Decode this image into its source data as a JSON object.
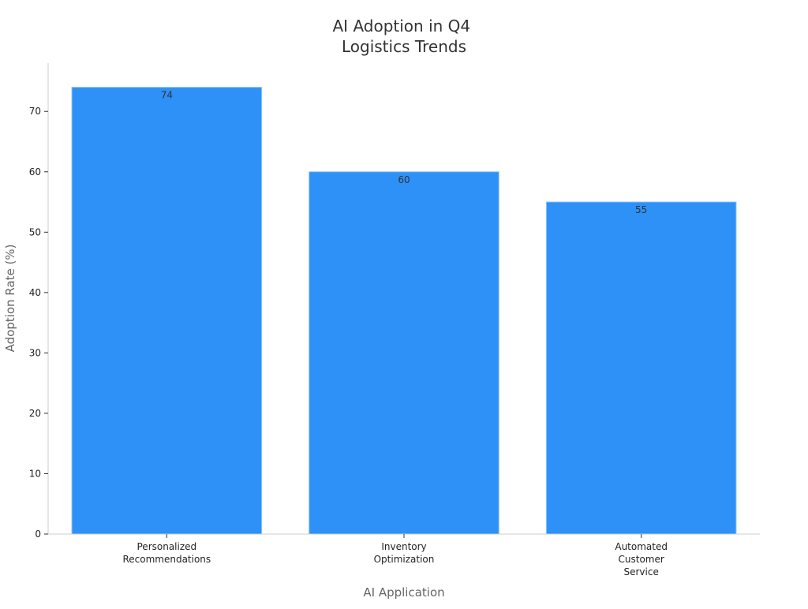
{
  "chart_data": {
    "type": "bar",
    "title": [
      "AI Adoption in Q4",
      "Logistics Trends"
    ],
    "xlabel": "AI Application",
    "ylabel": "Adoption Rate (%)",
    "categories": [
      [
        "Personalized",
        "Recommendations"
      ],
      [
        "Inventory",
        "Optimization"
      ],
      [
        "Automated",
        "Customer",
        "Service"
      ]
    ],
    "values": [
      74,
      60,
      55
    ],
    "data_labels": [
      "74",
      "60",
      "55"
    ],
    "ylim": [
      0,
      78
    ],
    "yticks": [
      0,
      10,
      20,
      30,
      40,
      50,
      60,
      70
    ],
    "grid": false,
    "legend": "none",
    "colors": {
      "bar": "#2d91f7",
      "bar_edge": "#8fc3fa",
      "axis": "#cccccc",
      "tick": "#333333"
    }
  }
}
